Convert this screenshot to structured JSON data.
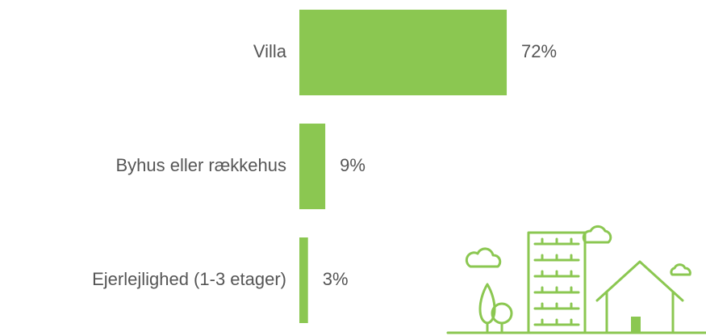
{
  "chart_data": {
    "type": "bar",
    "orientation": "horizontal",
    "categories": [
      "Villa",
      "Byhus eller rækkehus",
      "Ejerlejlighed (1-3 etager)"
    ],
    "values": [
      72,
      9,
      3
    ],
    "value_labels": [
      "72%",
      "9%",
      "3%"
    ],
    "color": "#8bc751"
  }
}
